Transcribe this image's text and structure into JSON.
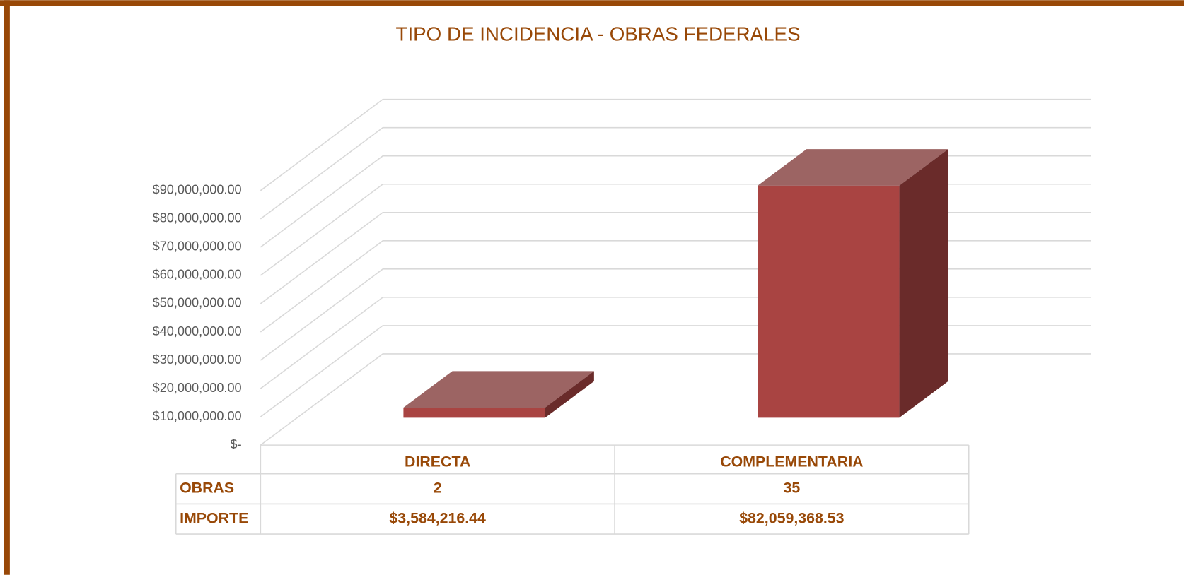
{
  "chart_data": {
    "type": "bar",
    "title": "TIPO DE INCIDENCIA - OBRAS FEDERALES",
    "categories": [
      "DIRECTA",
      "COMPLEMENTARIA"
    ],
    "series": [
      {
        "name": "IMPORTE",
        "color": "#a94442",
        "values": [
          3584216.44,
          82059368.53
        ],
        "value_labels": [
          "$3,584,216.44",
          "$82,059,368.53"
        ]
      }
    ],
    "data_table": {
      "rows": [
        {
          "name": "OBRAS",
          "values": [
            2,
            35
          ]
        }
      ]
    },
    "ylim": [
      0,
      90000000
    ],
    "yticks": [
      {
        "value": 0,
        "label": "$-"
      },
      {
        "value": 10000000,
        "label": "$10,000,000.00"
      },
      {
        "value": 20000000,
        "label": "$20,000,000.00"
      },
      {
        "value": 30000000,
        "label": "$30,000,000.00"
      },
      {
        "value": 40000000,
        "label": "$40,000,000.00"
      },
      {
        "value": 50000000,
        "label": "$50,000,000.00"
      },
      {
        "value": 60000000,
        "label": "$60,000,000.00"
      },
      {
        "value": 70000000,
        "label": "$70,000,000.00"
      },
      {
        "value": 80000000,
        "label": "$80,000,000.00"
      },
      {
        "value": 90000000,
        "label": "$90,000,000.00"
      }
    ],
    "grid": true
  }
}
